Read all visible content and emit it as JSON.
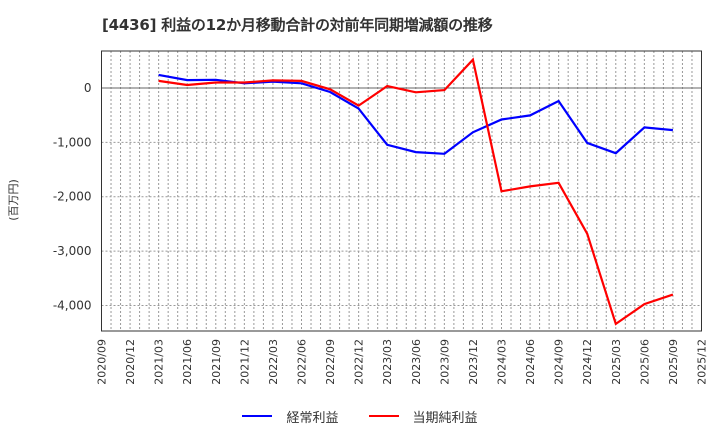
{
  "title": "[4436]  利益の12か月移動合計の対前年同期増減額の推移",
  "colors": {
    "series_1": "#0000ff",
    "series_2": "#ff0000",
    "grid": "#999999",
    "axis": "#333333"
  },
  "chart_data": {
    "type": "line",
    "title": "[4436]  利益の12か月移動合計の対前年同期増減額の推移",
    "xlabel": "",
    "ylabel": "(百万円)",
    "ylim": [
      -4470,
      680
    ],
    "yticks": [
      0,
      -1000,
      -2000,
      -3000,
      -4000
    ],
    "ytick_labels": [
      "0",
      "-1,000",
      "-2,000",
      "-3,000",
      "-4,000"
    ],
    "grid": true,
    "legend_position": "bottom",
    "categories": [
      "2020/09",
      "2020/12",
      "2021/03",
      "2021/06",
      "2021/09",
      "2021/12",
      "2022/03",
      "2022/06",
      "2022/09",
      "2022/12",
      "2023/03",
      "2023/06",
      "2023/09",
      "2023/12",
      "2024/03",
      "2024/06",
      "2024/09",
      "2024/12",
      "2025/03",
      "2025/06",
      "2025/09",
      "2025/12"
    ],
    "series": [
      {
        "name": "経常利益",
        "color": "#0000ff",
        "values": [
          null,
          null,
          240,
          145,
          150,
          85,
          115,
          85,
          -75,
          -380,
          -1045,
          -1180,
          -1210,
          -815,
          -580,
          -505,
          -240,
          -1010,
          -1200,
          -725,
          -775,
          null
        ]
      },
      {
        "name": "当期純利益",
        "color": "#ff0000",
        "values": [
          null,
          null,
          130,
          55,
          100,
          100,
          140,
          130,
          -25,
          -325,
          35,
          -80,
          -40,
          520,
          -1900,
          -1810,
          -1745,
          -2680,
          -4340,
          -3975,
          -3800,
          null
        ]
      }
    ]
  },
  "legend": {
    "items": [
      {
        "label": "経常利益",
        "color": "#0000ff"
      },
      {
        "label": "当期純利益",
        "color": "#ff0000"
      }
    ]
  }
}
